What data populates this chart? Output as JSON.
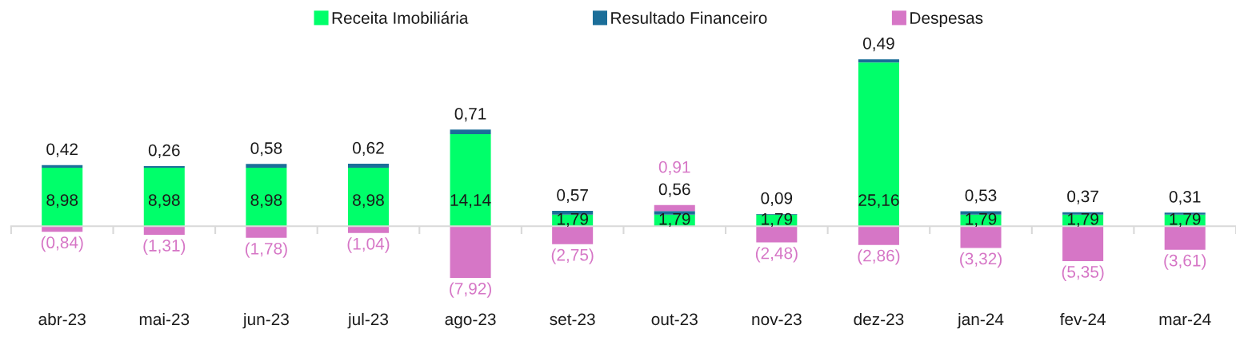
{
  "chart_data": {
    "type": "bar",
    "stacked": true,
    "legend": "top",
    "tick_labels": "x",
    "categories": [
      "abr-23",
      "mai-23",
      "jun-23",
      "jul-23",
      "ago-23",
      "set-23",
      "out-23",
      "nov-23",
      "dez-23",
      "jan-24",
      "fev-24",
      "mar-24"
    ],
    "series": [
      {
        "name": "Receita Imobiliária",
        "color": "#00ff6a",
        "values": [
          8.98,
          8.98,
          8.98,
          8.98,
          14.14,
          1.79,
          1.79,
          1.79,
          25.16,
          1.79,
          1.79,
          1.79
        ],
        "value_labels": [
          "8,98",
          "8,98",
          "8,98",
          "8,98",
          "14,14",
          "1,79",
          "1,79",
          "1,79",
          "25,16",
          "1,79",
          "1,79",
          "1,79"
        ]
      },
      {
        "name": "Resultado Financeiro",
        "color": "#1b6e99",
        "values": [
          0.42,
          0.26,
          0.58,
          0.62,
          0.71,
          0.57,
          0.56,
          0.09,
          0.49,
          0.53,
          0.37,
          0.31
        ],
        "value_labels": [
          "0,42",
          "0,26",
          "0,58",
          "0,62",
          "0,71",
          "0,57",
          "0,56",
          "0,09",
          "0,49",
          "0,53",
          "0,37",
          "0,31"
        ]
      },
      {
        "name": "Despesas",
        "color": "#d676c6",
        "values": [
          -0.84,
          -1.31,
          -1.78,
          -1.04,
          -7.92,
          -2.75,
          0.91,
          -2.48,
          -2.86,
          -3.32,
          -5.35,
          -3.61
        ],
        "value_labels": [
          "(0,84)",
          "(1,31)",
          "(1,78)",
          "(1,04)",
          "(7,92)",
          "(2,75)",
          "0,91",
          "(2,48)",
          "(2,86)",
          "(3,32)",
          "(5,35)",
          "(3,61)"
        ]
      }
    ]
  }
}
